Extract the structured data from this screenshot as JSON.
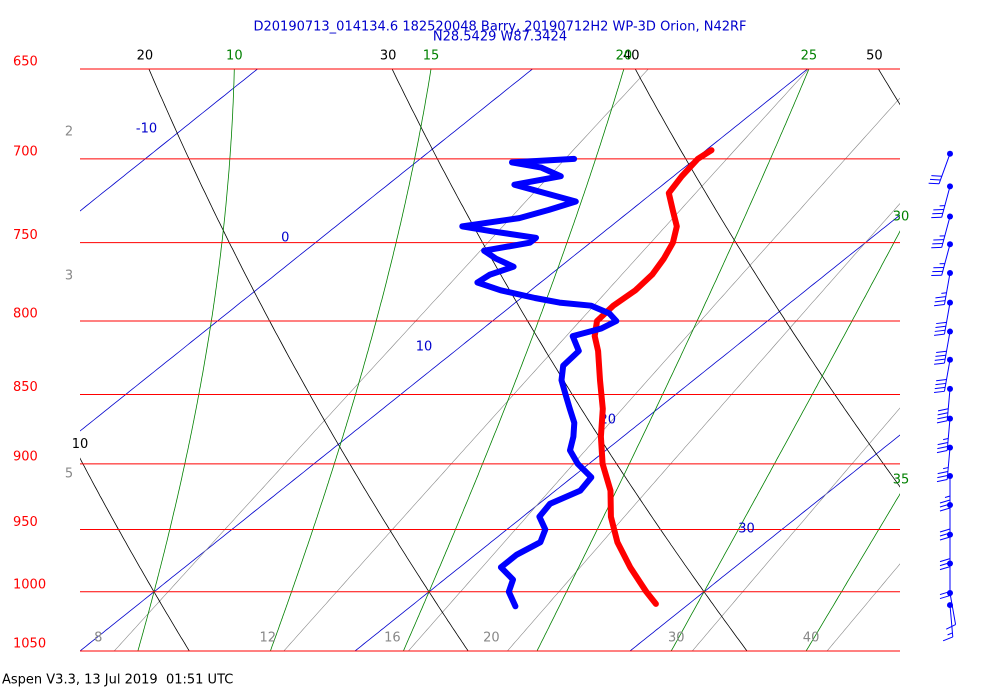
{
  "chart_data": {
    "type": "skewt",
    "title": "D20190713_014134.6 182520048 Barry, 20190712H2 WP-3D Orion, N42RF",
    "subtitle": "N28.5429 W87.3424",
    "footer": "Aspen V3.3, 13 Jul 2019  01:51 UTC",
    "log_y": true,
    "ylim": [
      650,
      1050
    ],
    "yticks": [
      650,
      700,
      750,
      800,
      850,
      900,
      950,
      1000,
      1050
    ],
    "ytick_color": "#ff0000",
    "isotherms": {
      "color": "#0000cc",
      "values": [
        -10,
        0,
        10,
        20,
        30
      ]
    },
    "dry_adiabats": {
      "color": "#000000",
      "values": [
        10,
        20,
        30,
        40,
        50
      ]
    },
    "moist_adiabats": {
      "color": "#008000",
      "values": [
        10,
        15,
        20,
        25,
        30,
        35
      ]
    },
    "mixing_ratios": {
      "color": "#888888",
      "values": [
        8,
        12,
        16,
        20,
        30,
        40
      ]
    },
    "left_labels": {
      "color": "#888888",
      "values": [
        2,
        3,
        5
      ]
    },
    "series": [
      {
        "color": "#ff0000",
        "pressure": [
          1010,
          1000,
          980,
          960,
          940,
          920,
          900,
          880,
          860,
          840,
          820,
          810,
          800,
          790,
          780,
          770,
          760,
          750,
          740,
          730,
          720,
          710,
          700,
          695
        ],
        "values": [
          28.8,
          27.9,
          26.2,
          24.6,
          23.2,
          22.0,
          20.5,
          19.2,
          18.0,
          16.6,
          15.2,
          14.4,
          13.8,
          13.7,
          13.8,
          13.7,
          13.4,
          13.0,
          12.4,
          11.5,
          10.6,
          10.3,
          10.1,
          10.2
        ]
      },
      {
        "color": "#0000ff",
        "pressure": [
          1012,
          1000,
          990,
          980,
          970,
          960,
          950,
          940,
          930,
          920,
          910,
          900,
          890,
          880,
          870,
          860,
          850,
          840,
          830,
          820,
          810,
          805,
          800,
          795,
          790,
          788,
          785,
          780,
          775,
          770,
          765,
          760,
          755,
          750,
          747,
          743,
          740,
          735,
          730,
          725,
          720,
          715,
          710,
          705,
          702,
          700
        ],
        "values": [
          23.8,
          22.9,
          22.5,
          21.5,
          21.5,
          21.8,
          21.4,
          20.6,
          20.4,
          20.9,
          20.7,
          19.6,
          18.7,
          18.2,
          17.6,
          16.8,
          16.0,
          15.2,
          14.6,
          14.5,
          13.6,
          14.3,
          14.5,
          13.9,
          12.9,
          11.6,
          10.5,
          8.9,
          7.7,
          7.8,
          8.3,
          7.3,
          6.5,
          7.8,
          7.8,
          5.9,
          4.6,
          6.3,
          7.0,
          7.6,
          6.1,
          4.6,
          5.9,
          4.8,
          3.5,
          5.6
        ]
      }
    ],
    "winds": {
      "color": "#0000ff",
      "pressure": [
        697,
        716,
        734,
        751,
        769,
        788,
        807,
        826,
        846,
        867,
        888,
        909,
        931,
        954,
        977,
        1001,
        1011
      ],
      "speed": [
        30,
        35,
        35,
        35,
        35,
        40,
        40,
        40,
        40,
        35,
        35,
        35,
        30,
        30,
        20,
        10,
        15
      ],
      "direction": [
        200,
        195,
        195,
        195,
        190,
        190,
        190,
        190,
        185,
        185,
        185,
        180,
        180,
        180,
        180,
        170,
        175
      ]
    }
  }
}
